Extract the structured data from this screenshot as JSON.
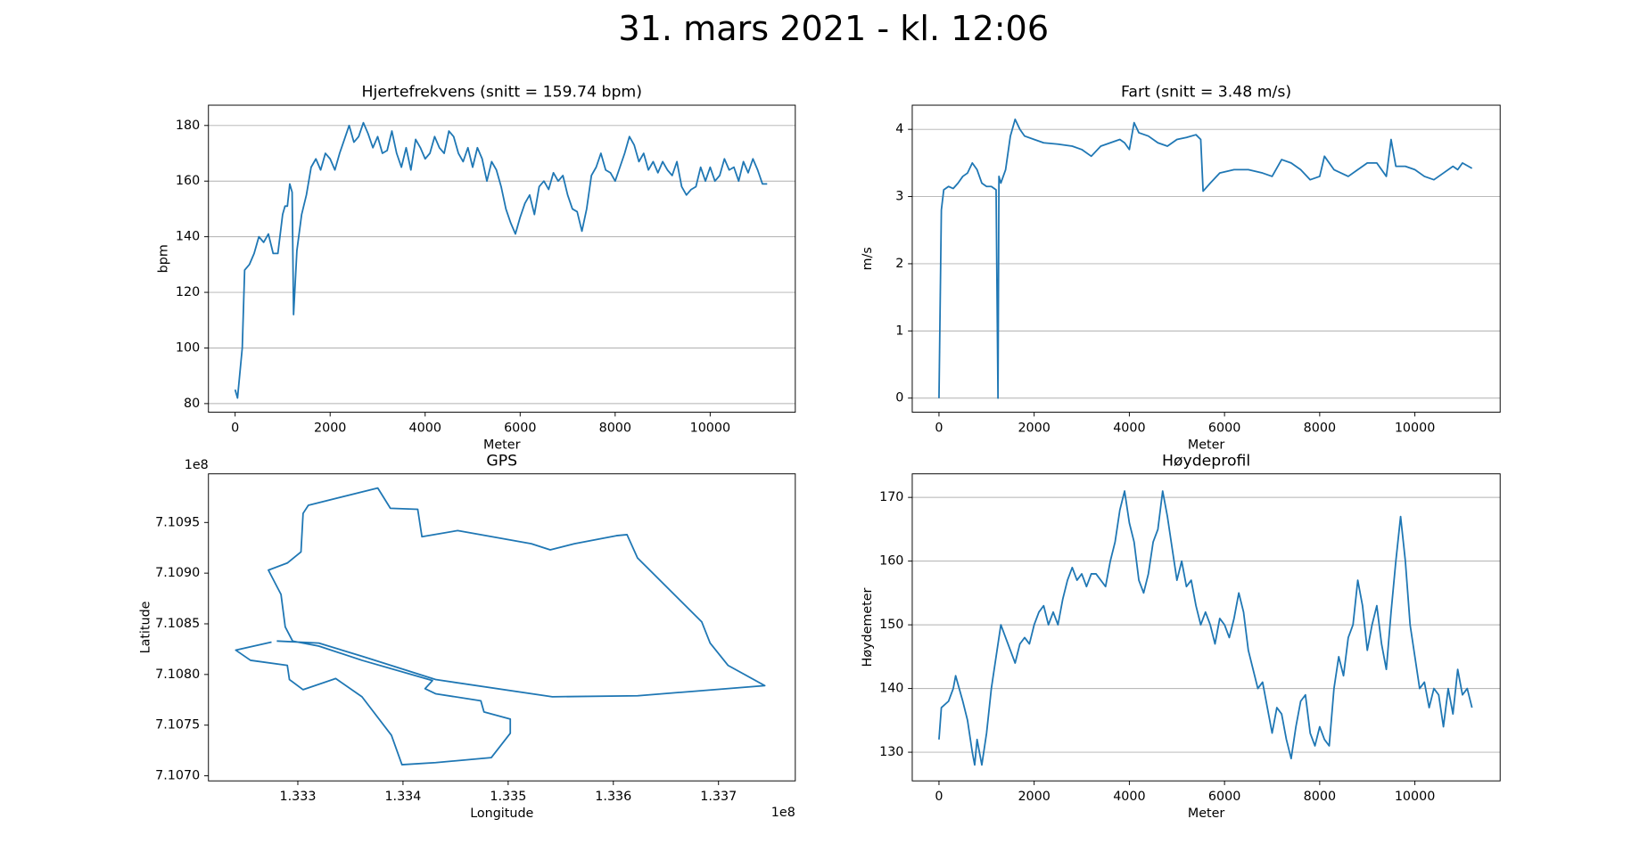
{
  "title": "31. mars 2021 - kl. 12:06",
  "chart_data": [
    {
      "type": "line",
      "title": "Hjertefrekvens (snitt = 159.74 bpm)",
      "xlabel": "Meter",
      "ylabel": "bpm",
      "color": "#1f77b4",
      "grid": "y",
      "x": [
        0,
        50,
        150,
        200,
        300,
        400,
        500,
        600,
        700,
        800,
        900,
        1000,
        1050,
        1100,
        1150,
        1200,
        1230,
        1300,
        1400,
        1500,
        1600,
        1700,
        1800,
        1900,
        2000,
        2100,
        2200,
        2300,
        2400,
        2500,
        2600,
        2700,
        2800,
        2900,
        3000,
        3100,
        3200,
        3300,
        3400,
        3500,
        3600,
        3700,
        3800,
        3900,
        4000,
        4100,
        4200,
        4300,
        4400,
        4500,
        4600,
        4700,
        4800,
        4900,
        5000,
        5100,
        5200,
        5300,
        5400,
        5500,
        5600,
        5700,
        5800,
        5900,
        6000,
        6100,
        6200,
        6300,
        6400,
        6500,
        6600,
        6700,
        6800,
        6900,
        7000,
        7100,
        7200,
        7300,
        7400,
        7500,
        7600,
        7700,
        7800,
        7900,
        8000,
        8100,
        8200,
        8300,
        8400,
        8500,
        8600,
        8700,
        8800,
        8900,
        9000,
        9100,
        9200,
        9300,
        9400,
        9500,
        9600,
        9700,
        9800,
        9900,
        10000,
        10100,
        10200,
        10300,
        10400,
        10500,
        10600,
        10700,
        10800,
        10900,
        11000,
        11100,
        11200
      ],
      "values": [
        85,
        82,
        100,
        128,
        130,
        134,
        140,
        138,
        141,
        134,
        134,
        148,
        151,
        151,
        159,
        156,
        112,
        135,
        148,
        155,
        165,
        168,
        164,
        170,
        168,
        164,
        170,
        175,
        180,
        174,
        176,
        181,
        177,
        172,
        176,
        170,
        171,
        178,
        170,
        165,
        172,
        164,
        175,
        172,
        168,
        170,
        176,
        172,
        170,
        178,
        176,
        170,
        167,
        172,
        165,
        172,
        168,
        160,
        167,
        164,
        158,
        150,
        145,
        141,
        147,
        152,
        155,
        148,
        158,
        160,
        157,
        163,
        160,
        162,
        155,
        150,
        149,
        142,
        150,
        162,
        165,
        170,
        164,
        163,
        160,
        165,
        170,
        176,
        173,
        167,
        170,
        164,
        167,
        163,
        167,
        164,
        162,
        167,
        158,
        155,
        157,
        158,
        165,
        160,
        165,
        160,
        162,
        168,
        164,
        165,
        160,
        167,
        163,
        168,
        164,
        159,
        159
      ],
      "xlim": [
        -562,
        11792
      ],
      "ylim": [
        76.9,
        187.3
      ],
      "xticks": [
        0,
        2000,
        4000,
        6000,
        8000,
        10000
      ],
      "yticks": [
        80,
        100,
        120,
        140,
        160,
        180
      ]
    },
    {
      "type": "line",
      "title": "Fart (snitt = 3.48 m/s)",
      "xlabel": "Meter",
      "ylabel": "m/s",
      "color": "#1f77b4",
      "grid": "y",
      "x": [
        0,
        50,
        100,
        200,
        300,
        400,
        500,
        600,
        700,
        800,
        900,
        1000,
        1100,
        1200,
        1240,
        1260,
        1300,
        1400,
        1500,
        1600,
        1700,
        1800,
        2000,
        2200,
        2500,
        2800,
        3000,
        3200,
        3400,
        3600,
        3800,
        3900,
        4000,
        4100,
        4200,
        4400,
        4600,
        4800,
        5000,
        5200,
        5400,
        5500,
        5550,
        5700,
        5900,
        6200,
        6500,
        6800,
        7000,
        7200,
        7400,
        7600,
        7800,
        8000,
        8100,
        8300,
        8600,
        8800,
        9000,
        9200,
        9400,
        9500,
        9600,
        9800,
        10000,
        10200,
        10400,
        10600,
        10800,
        10900,
        11000,
        11200
      ],
      "values": [
        0,
        2.8,
        3.1,
        3.15,
        3.12,
        3.2,
        3.3,
        3.35,
        3.5,
        3.4,
        3.2,
        3.15,
        3.15,
        3.1,
        0,
        3.3,
        3.2,
        3.4,
        3.9,
        4.15,
        4.0,
        3.9,
        3.85,
        3.8,
        3.78,
        3.75,
        3.7,
        3.6,
        3.75,
        3.8,
        3.85,
        3.8,
        3.7,
        4.1,
        3.95,
        3.9,
        3.8,
        3.75,
        3.85,
        3.88,
        3.92,
        3.85,
        3.08,
        3.2,
        3.35,
        3.4,
        3.4,
        3.35,
        3.3,
        3.55,
        3.5,
        3.4,
        3.25,
        3.3,
        3.6,
        3.4,
        3.3,
        3.4,
        3.5,
        3.5,
        3.3,
        3.85,
        3.45,
        3.45,
        3.4,
        3.3,
        3.25,
        3.35,
        3.45,
        3.4,
        3.5,
        3.42
      ],
      "xlim": [
        -562,
        11792
      ],
      "ylim": [
        -0.21,
        4.36
      ],
      "xticks": [
        0,
        2000,
        4000,
        6000,
        8000,
        10000
      ],
      "yticks": [
        0,
        1,
        2,
        3,
        4
      ]
    },
    {
      "type": "line",
      "title": "GPS",
      "xlabel": "Longitude",
      "ylabel": "Latitude",
      "color": "#1f77b4",
      "grid": "none",
      "x_offset": "1e8",
      "y_offset": "1e8",
      "x": [
        1.3328,
        1.3332,
        1.33361,
        1.33431,
        1.33542,
        1.33623,
        1.33744,
        1.33709,
        1.33692,
        1.33684,
        1.33623,
        1.33613,
        1.33603,
        1.33563,
        1.3354,
        1.33522,
        1.33452,
        1.33418,
        1.33414,
        1.33388,
        1.33376,
        1.3331,
        1.33305,
        1.33303,
        1.3329,
        1.33272,
        1.33284,
        1.33288,
        1.33295,
        1.3332,
        1.33361,
        1.33428,
        1.33421,
        1.33431,
        1.33474,
        1.33477,
        1.33502,
        1.33502,
        1.33484,
        1.33431,
        1.33399,
        1.33389,
        1.33361,
        1.33336,
        1.33305,
        1.33292,
        1.3329,
        1.33255,
        1.33241,
        1.33275
      ],
      "values": [
        7.10833,
        7.10831,
        7.10818,
        7.10795,
        7.10778,
        7.10779,
        7.10789,
        7.10809,
        7.10831,
        7.10852,
        7.10915,
        7.10938,
        7.10937,
        7.10929,
        7.10923,
        7.10929,
        7.10942,
        7.10936,
        7.10963,
        7.10964,
        7.10984,
        7.10967,
        7.10959,
        7.10921,
        7.1091,
        7.10903,
        7.10879,
        7.10847,
        7.10833,
        7.10828,
        7.10814,
        7.10794,
        7.10786,
        7.10781,
        7.10774,
        7.10763,
        7.10756,
        7.10742,
        7.10718,
        7.10713,
        7.10711,
        7.1074,
        7.10778,
        7.10796,
        7.10785,
        7.10795,
        7.10809,
        7.10814,
        7.10824,
        7.10832
      ],
      "xlim": [
        1.33215,
        1.33773
      ],
      "ylim": [
        7.10695,
        7.10998
      ],
      "xticks": [
        1.333,
        1.334,
        1.335,
        1.336,
        1.337
      ],
      "yticks": [
        {
          "value": 7.107,
          "label": "7.1070"
        },
        7.1075,
        {
          "value": 7.108,
          "label": "7.1080"
        },
        7.1085,
        {
          "value": 7.109,
          "label": "7.1090"
        },
        7.1095
      ]
    },
    {
      "type": "line",
      "title": "Høydeprofil",
      "xlabel": "Meter",
      "ylabel": "Høydemeter",
      "color": "#1f77b4",
      "grid": "y",
      "x": [
        0,
        50,
        200,
        300,
        350,
        500,
        600,
        700,
        750,
        800,
        900,
        1000,
        1100,
        1200,
        1300,
        1400,
        1500,
        1600,
        1700,
        1800,
        1900,
        2000,
        2100,
        2200,
        2300,
        2400,
        2500,
        2600,
        2700,
        2800,
        2900,
        3000,
        3100,
        3200,
        3300,
        3400,
        3500,
        3600,
        3700,
        3800,
        3900,
        4000,
        4100,
        4200,
        4300,
        4400,
        4500,
        4600,
        4700,
        4800,
        4900,
        5000,
        5100,
        5200,
        5300,
        5400,
        5500,
        5600,
        5700,
        5800,
        5900,
        6000,
        6100,
        6200,
        6300,
        6400,
        6500,
        6600,
        6700,
        6800,
        6900,
        7000,
        7100,
        7200,
        7300,
        7400,
        7500,
        7600,
        7700,
        7800,
        7900,
        8000,
        8100,
        8200,
        8300,
        8400,
        8500,
        8600,
        8700,
        8800,
        8900,
        9000,
        9100,
        9200,
        9300,
        9400,
        9500,
        9600,
        9700,
        9800,
        9900,
        10000,
        10100,
        10200,
        10300,
        10400,
        10500,
        10600,
        10700,
        10800,
        10900,
        11000,
        11100,
        11200
      ],
      "values": [
        132,
        137,
        138,
        140,
        142,
        138,
        135,
        130,
        128,
        132,
        128,
        133,
        140,
        145,
        150,
        148,
        146,
        144,
        147,
        148,
        147,
        150,
        152,
        153,
        150,
        152,
        150,
        154,
        157,
        159,
        157,
        158,
        156,
        158,
        158,
        157,
        156,
        160,
        163,
        168,
        171,
        166,
        163,
        157,
        155,
        158,
        163,
        165,
        171,
        167,
        162,
        157,
        160,
        156,
        157,
        153,
        150,
        152,
        150,
        147,
        151,
        150,
        148,
        151,
        155,
        152,
        146,
        143,
        140,
        141,
        137,
        133,
        137,
        136,
        132,
        129,
        134,
        138,
        139,
        133,
        131,
        134,
        132,
        131,
        140,
        145,
        142,
        148,
        150,
        157,
        153,
        146,
        150,
        153,
        147,
        143,
        152,
        160,
        167,
        160,
        150,
        145,
        140,
        141,
        137,
        140,
        139,
        134,
        140,
        136,
        143,
        139,
        140,
        137
      ],
      "xlim": [
        -562,
        11792
      ],
      "ylim": [
        125.5,
        173.7
      ],
      "xticks": [
        0,
        2000,
        4000,
        6000,
        8000,
        10000
      ],
      "yticks": [
        130,
        140,
        150,
        160,
        170
      ]
    }
  ]
}
